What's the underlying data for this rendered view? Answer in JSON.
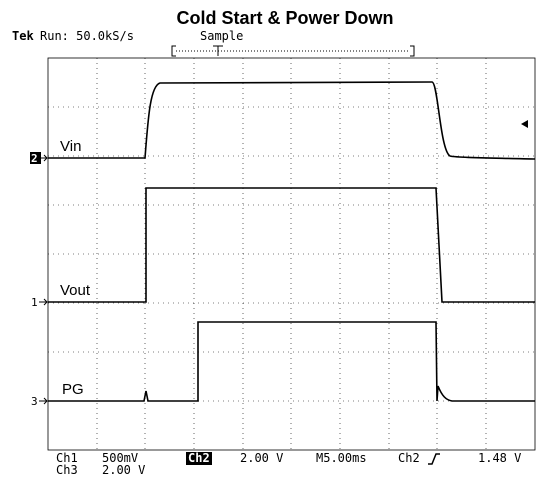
{
  "header": {
    "title": "Cold Start & Power Down",
    "brand": "Tek",
    "status": "Run: 50.0kS/s",
    "mode": "Sample"
  },
  "traces": [
    {
      "label": "Vin",
      "channel": "2"
    },
    {
      "label": "Vout",
      "channel": "1"
    },
    {
      "label": "PG",
      "channel": "3"
    }
  ],
  "footer": {
    "ch1": "Ch1",
    "ch1_scale": "500mV",
    "ch3": "Ch3",
    "ch3_scale": "2.00 V",
    "ch2": "Ch2",
    "ch2_scale": "2.00 V",
    "timebase": "M5.00ms",
    "trigger_source": "Ch2",
    "trigger_level": "1.48 V"
  }
}
